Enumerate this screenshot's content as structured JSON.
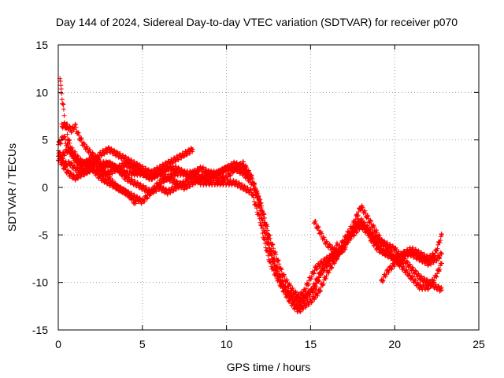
{
  "chart_data": {
    "type": "scatter",
    "title": "Day 144 of 2024, Sidereal Day-to-day VTEC variation (SDTVAR) for receiver p070",
    "xlabel": "GPS time / hours",
    "ylabel": "SDTVAR / TECUs",
    "xlim": [
      0,
      25
    ],
    "ylim": [
      -15,
      15
    ],
    "xticks": [
      0,
      5,
      10,
      15,
      20,
      25
    ],
    "yticks": [
      -15,
      -10,
      -5,
      0,
      5,
      10,
      15
    ],
    "grid": true,
    "marker": "plus",
    "color": "#ff0000",
    "series": [
      {
        "x": [
          0.0,
          0.2,
          0.3,
          0.5,
          0.8,
          1.0,
          1.3,
          1.5,
          2.0,
          2.5,
          3.0,
          3.5,
          4.0,
          4.5,
          5.0,
          5.5,
          6.0,
          6.5,
          7.0,
          7.5,
          8.0,
          8.5,
          9.0,
          9.5,
          10.0,
          10.5,
          11.0,
          11.5,
          12.0,
          12.3,
          12.6,
          13.0,
          13.3,
          13.6,
          14.0,
          14.3,
          14.6,
          15.0,
          15.3,
          15.6,
          16.0,
          16.5,
          17.0,
          17.5,
          17.8,
          18.2,
          18.6,
          19.0,
          19.5,
          20.0,
          20.5,
          21.0,
          21.5,
          22.0,
          22.5,
          22.8
        ],
        "y": [
          4.5,
          5.0,
          5.5,
          4.5,
          3.5,
          3.0,
          2.5,
          2.5,
          2.5,
          2.0,
          2.5,
          2.0,
          1.5,
          1.5,
          1.5,
          1.0,
          1.5,
          2.0,
          2.0,
          1.5,
          1.5,
          1.0,
          1.0,
          1.5,
          2.0,
          2.0,
          1.5,
          0.5,
          -1.5,
          -3.5,
          -5.5,
          -7.5,
          -9.0,
          -10.0,
          -11.0,
          -11.5,
          -11.0,
          -9.5,
          -8.5,
          -8.0,
          -7.5,
          -7.0,
          -6.5,
          -4.5,
          -3.5,
          -4.0,
          -5.5,
          -6.5,
          -7.0,
          -7.5,
          -7.0,
          -7.0,
          -7.5,
          -8.0,
          -7.5,
          -7.0
        ]
      },
      {
        "x": [
          0.0,
          0.2,
          0.4,
          0.6,
          1.0,
          1.5,
          2.0,
          2.5,
          3.0,
          3.5,
          4.0,
          4.5,
          5.0,
          5.5,
          6.0,
          6.5,
          7.0,
          7.5,
          8.0,
          8.5,
          9.0,
          9.5,
          10.0,
          10.5,
          11.0,
          11.5,
          12.0,
          12.3,
          12.6,
          13.0,
          13.3,
          13.6,
          14.0,
          14.3,
          14.6,
          15.0,
          15.5,
          16.0,
          16.5,
          17.0,
          17.5,
          18.0,
          18.5,
          19.0,
          19.5,
          20.0,
          20.5,
          21.0,
          21.5,
          22.0,
          22.5,
          22.8
        ],
        "y": [
          3.5,
          2.5,
          2.0,
          1.5,
          1.0,
          1.5,
          2.0,
          1.5,
          1.5,
          2.0,
          2.5,
          2.0,
          1.5,
          1.0,
          1.5,
          1.0,
          1.5,
          1.5,
          1.0,
          0.5,
          0.5,
          0.5,
          0.5,
          0.5,
          0.0,
          -0.5,
          -3.5,
          -6.0,
          -8.0,
          -9.5,
          -10.5,
          -11.5,
          -12.5,
          -13.0,
          -12.5,
          -12.0,
          -11.0,
          -9.0,
          -7.5,
          -6.0,
          -4.5,
          -3.5,
          -4.5,
          -5.5,
          -6.0,
          -6.5,
          -7.5,
          -8.5,
          -9.5,
          -10.0,
          -10.5,
          -10.8
        ]
      },
      {
        "x": [
          0.0,
          0.2,
          0.4,
          0.7,
          1.0,
          1.5,
          2.0,
          2.5,
          3.0,
          3.5,
          4.0,
          4.5,
          5.0,
          5.5,
          6.0,
          6.5,
          7.0,
          7.5,
          8.0,
          8.5,
          9.0,
          9.5,
          10.0,
          10.5,
          11.0,
          11.5,
          12.0,
          12.3,
          12.6,
          13.0,
          13.3,
          13.6,
          14.0,
          14.3,
          14.6,
          15.0,
          15.3,
          15.6,
          16.0,
          16.5,
          17.0,
          17.5,
          18.0,
          18.5,
          19.0,
          19.5,
          20.0,
          20.5
        ],
        "y": [
          4.0,
          3.0,
          2.5,
          2.5,
          2.0,
          1.5,
          2.0,
          1.0,
          0.5,
          0.0,
          -0.5,
          -1.0,
          -1.5,
          -0.5,
          0.5,
          1.0,
          0.5,
          0.0,
          0.5,
          1.0,
          1.5,
          1.5,
          2.0,
          2.5,
          2.0,
          1.0,
          -2.5,
          -5.0,
          -7.0,
          -9.0,
          -10.0,
          -11.0,
          -11.5,
          -12.0,
          -11.5,
          -11.0,
          -10.0,
          -9.0,
          -8.0,
          -7.0,
          -5.5,
          -4.0,
          -2.0,
          -3.5,
          -5.0,
          -6.5,
          -7.5,
          -8.0
        ]
      },
      {
        "x": [
          0.1,
          0.15,
          0.2,
          0.25,
          0.3,
          0.35,
          0.4,
          0.5,
          0.6,
          0.8,
          1.0,
          1.2,
          1.5,
          2.0,
          2.5,
          3.0,
          3.5,
          4.0,
          4.5,
          5.0,
          5.5,
          6.0,
          6.5,
          7.0,
          7.5,
          8.0,
          8.5,
          9.0,
          9.5,
          10.0,
          10.5,
          11.0,
          11.5,
          12.0,
          12.3,
          12.6,
          13.0,
          13.3,
          13.6,
          14.0,
          14.3,
          14.6,
          15.0,
          15.3,
          15.6,
          16.0,
          16.3,
          16.6
        ],
        "y": [
          11.5,
          10.5,
          10.0,
          9.0,
          8.5,
          7.5,
          6.5,
          6.0,
          5.0,
          4.0,
          3.5,
          3.0,
          2.5,
          3.0,
          2.5,
          2.5,
          2.0,
          1.0,
          0.5,
          0.0,
          -0.5,
          0.0,
          -0.5,
          0.0,
          0.5,
          1.5,
          2.0,
          1.5,
          1.0,
          1.0,
          2.0,
          2.5,
          1.0,
          -1.5,
          -4.0,
          -6.5,
          -8.5,
          -10.0,
          -11.0,
          -12.0,
          -12.5,
          -12.0,
          -11.0,
          -10.5,
          -9.0,
          -8.0,
          -7.0,
          -6.0
        ]
      },
      {
        "x": [
          0.2,
          0.5,
          0.8,
          1.0,
          1.2,
          1.5,
          2.0,
          2.3,
          2.6,
          3.0,
          3.5,
          4.0,
          4.3,
          4.6
        ],
        "y": [
          6.5,
          6.5,
          6.0,
          6.5,
          5.5,
          4.5,
          3.5,
          3.0,
          2.0,
          1.0,
          0.0,
          -0.5,
          -1.0,
          -1.7
        ]
      },
      {
        "x": [
          15.2,
          15.5,
          15.8,
          16.0,
          16.3,
          16.5,
          17.0,
          17.5,
          18.0,
          18.5,
          19.0,
          19.5,
          20.0,
          20.5,
          21.0,
          21.5,
          22.0,
          22.4,
          22.8
        ],
        "y": [
          -3.5,
          -4.5,
          -5.5,
          -6.0,
          -6.5,
          -7.5,
          -6.0,
          -5.0,
          -4.0,
          -5.0,
          -6.0,
          -7.0,
          -7.5,
          -8.5,
          -9.5,
          -10.5,
          -10.5,
          -9.5,
          -8.0
        ]
      },
      {
        "x": [
          19.2,
          19.5,
          20.0,
          20.5,
          21.0,
          21.5,
          22.0,
          22.4,
          22.6,
          22.8
        ],
        "y": [
          -10.0,
          -9.0,
          -8.0,
          -7.0,
          -6.5,
          -7.0,
          -7.5,
          -7.0,
          -6.0,
          -5.0
        ]
      },
      {
        "x": [
          0.0,
          0.3,
          0.6,
          1.0,
          1.5,
          2.0,
          2.5,
          3.0,
          3.5,
          4.0,
          4.5,
          5.0,
          5.5,
          6.0,
          6.5,
          7.0,
          7.5,
          8.0
        ],
        "y": [
          3.0,
          3.5,
          4.0,
          3.0,
          2.0,
          2.5,
          3.5,
          4.0,
          3.5,
          3.0,
          2.5,
          2.0,
          1.5,
          2.0,
          2.5,
          3.0,
          3.5,
          4.0
        ]
      }
    ]
  }
}
